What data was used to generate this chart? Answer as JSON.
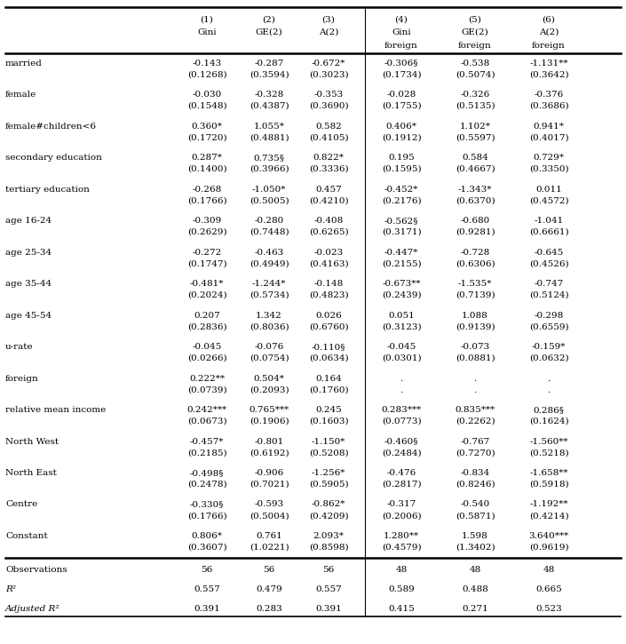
{
  "col_headers": [
    [
      "(1)",
      "(2)",
      "(3)",
      "(4)",
      "(5)",
      "(6)"
    ],
    [
      "Gini",
      "GE(2)",
      "A(2)",
      "Gini",
      "GE(2)",
      "A(2)"
    ],
    [
      "",
      "",
      "",
      "foreign",
      "foreign",
      "foreign"
    ]
  ],
  "rows": [
    {
      "label": "married",
      "values": [
        "-0.143",
        "-0.287",
        "-0.672*",
        "-0.306§",
        "-0.538",
        "-1.131**"
      ],
      "se": [
        "(0.1268)",
        "(0.3594)",
        "(0.3023)",
        "(0.1734)",
        "(0.5074)",
        "(0.3642)"
      ]
    },
    {
      "label": "female",
      "values": [
        "-0.030",
        "-0.328",
        "-0.353",
        "-0.028",
        "-0.326",
        "-0.376"
      ],
      "se": [
        "(0.1548)",
        "(0.4387)",
        "(0.3690)",
        "(0.1755)",
        "(0.5135)",
        "(0.3686)"
      ]
    },
    {
      "label": "female#children<6",
      "values": [
        "0.360*",
        "1.055*",
        "0.582",
        "0.406*",
        "1.102*",
        "0.941*"
      ],
      "se": [
        "(0.1720)",
        "(0.4881)",
        "(0.4105)",
        "(0.1912)",
        "(0.5597)",
        "(0.4017)"
      ]
    },
    {
      "label": "secondary education",
      "values": [
        "0.287*",
        "0.735§",
        "0.822*",
        "0.195",
        "0.584",
        "0.729*"
      ],
      "se": [
        "(0.1400)",
        "(0.3966)",
        "(0.3336)",
        "(0.1595)",
        "(0.4667)",
        "(0.3350)"
      ]
    },
    {
      "label": "tertiary education",
      "values": [
        "-0.268",
        "-1.050*",
        "0.457",
        "-0.452*",
        "-1.343*",
        "0.011"
      ],
      "se": [
        "(0.1766)",
        "(0.5005)",
        "(0.4210)",
        "(0.2176)",
        "(0.6370)",
        "(0.4572)"
      ]
    },
    {
      "label": "age 16-24",
      "values": [
        "-0.309",
        "-0.280",
        "-0.408",
        "-0.562§",
        "-0.680",
        "-1.041"
      ],
      "se": [
        "(0.2629)",
        "(0.7448)",
        "(0.6265)",
        "(0.3171)",
        "(0.9281)",
        "(0.6661)"
      ]
    },
    {
      "label": "age 25-34",
      "values": [
        "-0.272",
        "-0.463",
        "-0.023",
        "-0.447*",
        "-0.728",
        "-0.645"
      ],
      "se": [
        "(0.1747)",
        "(0.4949)",
        "(0.4163)",
        "(0.2155)",
        "(0.6306)",
        "(0.4526)"
      ]
    },
    {
      "label": "age 35-44",
      "values": [
        "-0.481*",
        "-1.244*",
        "-0.148",
        "-0.673**",
        "-1.535*",
        "-0.747"
      ],
      "se": [
        "(0.2024)",
        "(0.5734)",
        "(0.4823)",
        "(0.2439)",
        "(0.7139)",
        "(0.5124)"
      ]
    },
    {
      "label": "age 45-54",
      "values": [
        "0.207",
        "1.342",
        "0.026",
        "0.051",
        "1.088",
        "-0.298"
      ],
      "se": [
        "(0.2836)",
        "(0.8036)",
        "(0.6760)",
        "(0.3123)",
        "(0.9139)",
        "(0.6559)"
      ]
    },
    {
      "label": "u-rate",
      "values": [
        "-0.045",
        "-0.076",
        "-0.110§",
        "-0.045",
        "-0.073",
        "-0.159*"
      ],
      "se": [
        "(0.0266)",
        "(0.0754)",
        "(0.0634)",
        "(0.0301)",
        "(0.0881)",
        "(0.0632)"
      ]
    },
    {
      "label": "foreign",
      "values": [
        "0.222**",
        "0.504*",
        "0.164",
        ".",
        ".",
        "."
      ],
      "se": [
        "(0.0739)",
        "(0.2093)",
        "(0.1760)",
        ".",
        ".",
        "."
      ]
    },
    {
      "label": "relative mean income",
      "values": [
        "0.242***",
        "0.765***",
        "0.245",
        "0.283***",
        "0.835***",
        "0.286§"
      ],
      "se": [
        "(0.0673)",
        "(0.1906)",
        "(0.1603)",
        "(0.0773)",
        "(0.2262)",
        "(0.1624)"
      ]
    },
    {
      "label": "North West",
      "values": [
        "-0.457*",
        "-0.801",
        "-1.150*",
        "-0.460§",
        "-0.767",
        "-1.560**"
      ],
      "se": [
        "(0.2185)",
        "(0.6192)",
        "(0.5208)",
        "(0.2484)",
        "(0.7270)",
        "(0.5218)"
      ]
    },
    {
      "label": "North East",
      "values": [
        "-0.498§",
        "-0.906",
        "-1.256*",
        "-0.476",
        "-0.834",
        "-1.658**"
      ],
      "se": [
        "(0.2478)",
        "(0.7021)",
        "(0.5905)",
        "(0.2817)",
        "(0.8246)",
        "(0.5918)"
      ]
    },
    {
      "label": "Centre",
      "values": [
        "-0.330§",
        "-0.593",
        "-0.862*",
        "-0.317",
        "-0.540",
        "-1.192**"
      ],
      "se": [
        "(0.1766)",
        "(0.5004)",
        "(0.4209)",
        "(0.2006)",
        "(0.5871)",
        "(0.4214)"
      ]
    },
    {
      "label": "Constant",
      "values": [
        "0.806*",
        "0.761",
        "2.093*",
        "1.280**",
        "1.598",
        "3.640***"
      ],
      "se": [
        "(0.3607)",
        "(1.0221)",
        "(0.8598)",
        "(0.4579)",
        "(1.3402)",
        "(0.9619)"
      ]
    }
  ],
  "footer_rows": [
    {
      "label": "Observations",
      "values": [
        "56",
        "56",
        "56",
        "48",
        "48",
        "48"
      ],
      "italic": false
    },
    {
      "label": "R²",
      "values": [
        "0.557",
        "0.479",
        "0.557",
        "0.589",
        "0.488",
        "0.665"
      ],
      "italic": true
    },
    {
      "label": "Adjusted R²",
      "values": [
        "0.391",
        "0.283",
        "0.391",
        "0.415",
        "0.271",
        "0.523"
      ],
      "italic": true
    }
  ],
  "bg_color": "#ffffff",
  "text_color": "#000000",
  "font_size": 7.5,
  "header_font_size": 7.5
}
